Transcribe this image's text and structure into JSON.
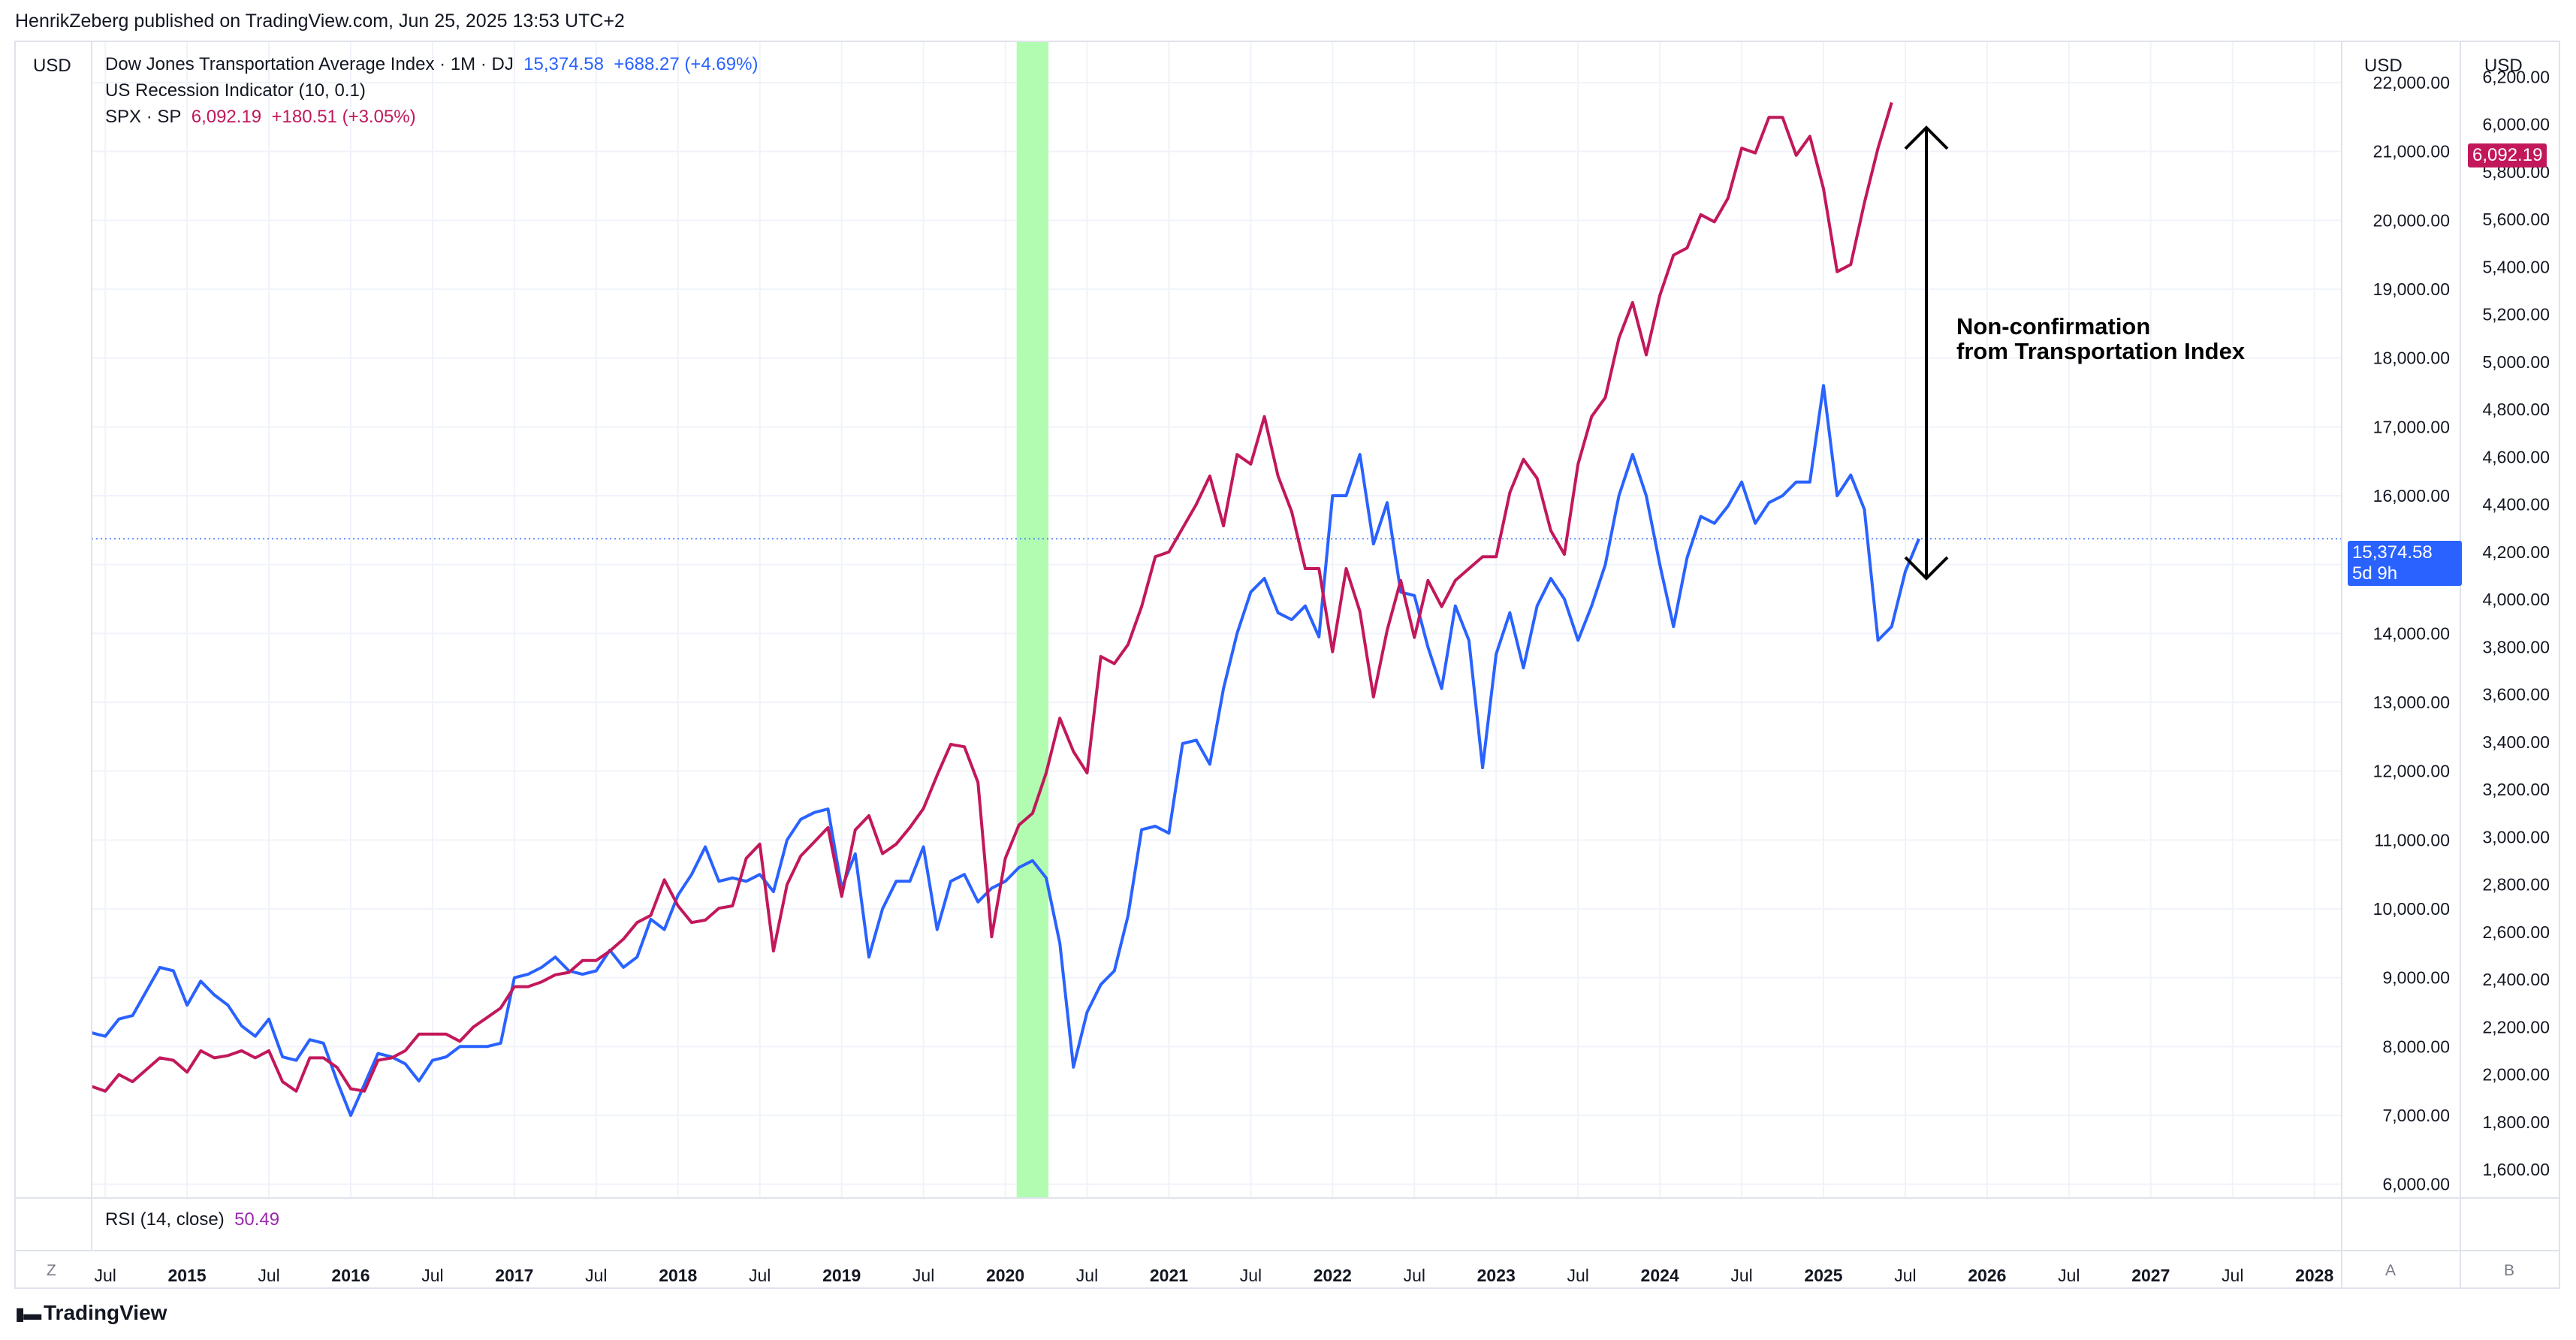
{
  "header": {
    "published": "HenrikZeberg published on TradingView.com, Jun 25, 2025 13:53 UTC+2"
  },
  "legend": {
    "djt_name": "Dow Jones Transportation Average Index · 1M · DJ",
    "djt_value": "15,374.58",
    "djt_change": "+688.27 (+4.69%)",
    "recession_name": "US Recession Indicator (10, 0.1)",
    "spx_name": "SPX · SP",
    "spx_value": "6,092.19",
    "spx_change": "+180.51 (+3.05%)"
  },
  "currency_left": "USD",
  "currency_right_1": "USD",
  "currency_right_2": "USD",
  "rsi": {
    "label": "RSI (14, close)",
    "value": "50.49"
  },
  "annotation": {
    "line1": "Non-confirmation",
    "line2": "from Transportation Index"
  },
  "price_tags": {
    "spx": "6,092.19",
    "djt": "15,374.58",
    "djt_countdown": "5d 9h"
  },
  "bottom_buttons": {
    "z": "Z",
    "a": "A",
    "b": "B"
  },
  "brand": "TradingView",
  "colors": {
    "djt": "#2962ff",
    "spx": "#c2185b",
    "recession": "#b1fcb1"
  },
  "chart_data": {
    "type": "line",
    "x_axis": {
      "start": "2014-06",
      "end": "2028-03",
      "tick_labels": [
        "Jul",
        "2015",
        "Jul",
        "2016",
        "Jul",
        "2017",
        "Jul",
        "2018",
        "Jul",
        "2019",
        "Jul",
        "2020",
        "Jul",
        "2021",
        "Jul",
        "2022",
        "Jul",
        "2023",
        "Jul",
        "2024",
        "Jul",
        "2025",
        "Jul",
        "2026",
        "Jul",
        "2027",
        "Jul",
        "2028"
      ]
    },
    "y_axis_djt": {
      "range": [
        5800,
        22600
      ],
      "ticks": [
        "6,000.00",
        "7,000.00",
        "8,000.00",
        "9,000.00",
        "10,000.00",
        "11,000.00",
        "12,000.00",
        "13,000.00",
        "14,000.00",
        "15,000.00",
        "16,000.00",
        "17,000.00",
        "18,000.00",
        "19,000.00",
        "20,000.00",
        "21,000.00",
        "22,000.00"
      ]
    },
    "y_axis_spx": {
      "range": [
        1480,
        6350
      ],
      "ticks": [
        "1,600.00",
        "1,800.00",
        "2,000.00",
        "2,200.00",
        "2,400.00",
        "2,600.00",
        "2,800.00",
        "3,000.00",
        "3,200.00",
        "3,400.00",
        "3,600.00",
        "3,800.00",
        "4,000.00",
        "4,200.00",
        "4,400.00",
        "4,600.00",
        "4,800.00",
        "5,000.00",
        "5,200.00",
        "5,400.00",
        "5,600.00",
        "5,800.00",
        "6,000.00",
        "6,200.00"
      ]
    },
    "recession_period": [
      "2020-02",
      "2020-04"
    ],
    "start_month": "2014-06",
    "series": [
      {
        "name": "Dow Jones Transportation Average Index",
        "axis": "djt",
        "color": "#2962ff",
        "values": [
          8200,
          8150,
          8400,
          8450,
          8800,
          9150,
          9100,
          8600,
          8950,
          8750,
          8600,
          8300,
          8150,
          8400,
          7850,
          7800,
          8100,
          8050,
          7500,
          7000,
          7450,
          7900,
          7850,
          7750,
          7500,
          7800,
          7850,
          8000,
          8000,
          8000,
          8050,
          9000,
          9050,
          9150,
          9300,
          9100,
          9050,
          9100,
          9400,
          9150,
          9300,
          9850,
          9700,
          10200,
          10500,
          10900,
          10400,
          10450,
          10400,
          10500,
          10250,
          11000,
          11300,
          11400,
          11450,
          10300,
          10800,
          9300,
          10000,
          10400,
          10400,
          10900,
          9700,
          10400,
          10500,
          10100,
          10300,
          10400,
          10600,
          10700,
          10450,
          9500,
          7700,
          8500,
          8900,
          9100,
          9900,
          11150,
          11200,
          11100,
          12400,
          12450,
          12100,
          13200,
          14000,
          14600,
          14800,
          14300,
          14200,
          14400,
          13950,
          16000,
          16000,
          16600,
          15300,
          15900,
          14600,
          14550,
          13800,
          13200,
          14400,
          13900,
          12050,
          13700,
          14300,
          13500,
          14400,
          14800,
          14500,
          13900,
          14400,
          15000,
          16000,
          16600,
          16000,
          15000,
          14100,
          15100,
          15700,
          15600,
          15850,
          16200,
          15600,
          15900,
          16000,
          16200,
          16200,
          17600,
          16000,
          16300,
          15800,
          13900,
          14100,
          14900,
          15374.58
        ]
      },
      {
        "name": "SPX",
        "axis": "spx",
        "color": "#c2185b",
        "values": [
          1950,
          1930,
          2000,
          1970,
          2020,
          2070,
          2060,
          2010,
          2100,
          2070,
          2080,
          2100,
          2070,
          2100,
          1970,
          1930,
          2070,
          2070,
          2030,
          1940,
          1930,
          2060,
          2070,
          2100,
          2170,
          2170,
          2170,
          2140,
          2200,
          2240,
          2280,
          2370,
          2370,
          2390,
          2420,
          2430,
          2480,
          2480,
          2520,
          2570,
          2640,
          2670,
          2820,
          2710,
          2640,
          2650,
          2700,
          2710,
          2910,
          2970,
          2520,
          2800,
          2920,
          2980,
          3040,
          2750,
          3030,
          3090,
          2930,
          2970,
          3040,
          3120,
          3260,
          3390,
          3380,
          3230,
          2580,
          2910,
          3050,
          3100,
          3270,
          3500,
          3360,
          3270,
          3760,
          3730,
          3810,
          3970,
          4180,
          4200,
          4300,
          4400,
          4520,
          4310,
          4610,
          4570,
          4770,
          4520,
          4370,
          4130,
          4130,
          3780,
          4130,
          3950,
          3590,
          3870,
          4080,
          3840,
          4080,
          3970,
          4080,
          4130,
          4180,
          4180,
          4450,
          4590,
          4510,
          4290,
          4190,
          4570,
          4770,
          4850,
          5100,
          5250,
          5030,
          5280,
          5450,
          5480,
          5620,
          5590,
          5690,
          5900,
          5880,
          6030,
          6030,
          5870,
          5950,
          5730,
          5380,
          5410,
          5670,
          5900,
          6092.19
        ]
      }
    ]
  }
}
